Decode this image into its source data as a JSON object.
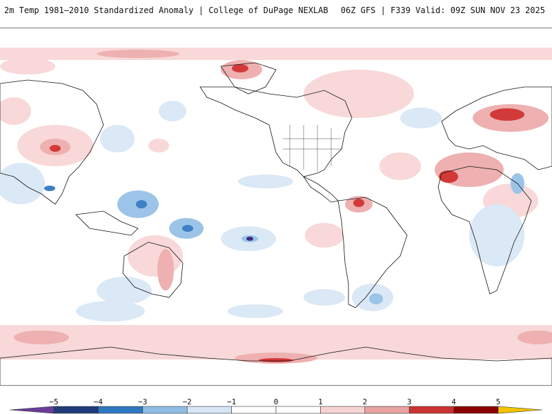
{
  "header": {
    "left_title": "2m Temp 1981–2010 Standardized Anomaly | College of DuPage NEXLAB",
    "right_title": "06Z GFS | F339 Valid: 09Z SUN NOV 23 2025"
  },
  "colorbar": {
    "ticks": [
      "−5",
      "−4",
      "−3",
      "−2",
      "−1",
      "0",
      "1",
      "2",
      "3",
      "4",
      "5"
    ],
    "colors": {
      "below_min": "#6a3d9a",
      "m5_m4": "#1f3b7a",
      "m4_m3": "#2e78c2",
      "m3_m2": "#8fbde6",
      "m2_m1": "#d6e6f7",
      "m1_p1": "#ffffff",
      "p1_p2": "#f6d3d3",
      "p2_p3": "#e9a2a2",
      "p3_p4": "#cc3333",
      "p4_p5": "#8b0000",
      "above_max": "#f2c400"
    }
  },
  "map": {
    "land_outline_color": "#111111",
    "warm_light": "#f8d8d8",
    "warm_mid": "#eeb0b0",
    "warm_strong": "#d23a3a",
    "warm_extreme": "#8b0000",
    "cold_light": "#dbe8f6",
    "cold_mid": "#9cc4e8",
    "cold_strong": "#3f7fc4",
    "cold_extreme": "#3b2b80"
  }
}
